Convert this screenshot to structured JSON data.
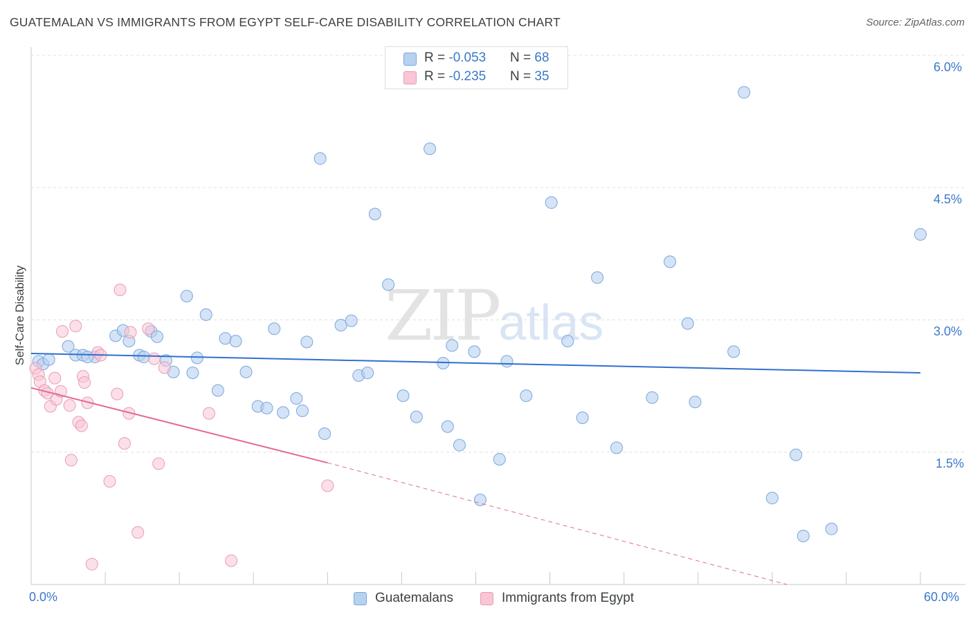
{
  "header": {
    "title": "GUATEMALAN VS IMMIGRANTS FROM EGYPT SELF-CARE DISABILITY CORRELATION CHART",
    "source": "Source: ZipAtlas.com"
  },
  "watermark": {
    "zip": "ZIP",
    "atlas": "atlas"
  },
  "stats": [
    {
      "r_label": "R = ",
      "r_value": "-0.053",
      "n_label": "N = ",
      "n_value": "68",
      "color": "#a8c8ee"
    },
    {
      "r_label": "R = ",
      "r_value": "-0.235",
      "n_label": "N = ",
      "n_value": "35",
      "color": "#f4b6c8"
    }
  ],
  "axes": {
    "x_min_label": "0.0%",
    "x_max_label": "60.0%",
    "y_tick_labels": [
      "1.5%",
      "3.0%",
      "4.5%",
      "6.0%"
    ],
    "ylabel": "Self-Care Disability"
  },
  "legend": {
    "guatemalans": "Guatemalans",
    "egypt": "Immigrants from Egypt"
  },
  "colors": {
    "blue_fill": "#b7d1f0",
    "blue_stroke": "#7aa6dd",
    "blue_line": "#2f6fce",
    "pink_fill": "#f8c6d5",
    "pink_stroke": "#ec9ab3",
    "pink_line": "#e36a96",
    "grid": "#e0e0e0",
    "axis_label": "#3a78c9"
  },
  "chart_data": {
    "type": "scatter",
    "title": "GUATEMALAN VS IMMIGRANTS FROM EGYPT SELF-CARE DISABILITY CORRELATION CHART",
    "xlabel": "",
    "ylabel": "Self-Care Disability",
    "xlim": [
      0,
      60
    ],
    "ylim": [
      0,
      6.3
    ],
    "y_ticks": [
      1.5,
      3.0,
      4.5,
      6.0
    ],
    "legend_position": "bottom",
    "series": [
      {
        "name": "Guatemalans",
        "r": -0.053,
        "n": 68,
        "trend": {
          "x": [
            0,
            60
          ],
          "y": [
            2.62,
            2.4
          ]
        },
        "points": [
          [
            0.5,
            2.53
          ],
          [
            0.8,
            2.5
          ],
          [
            1.2,
            2.55
          ],
          [
            2.5,
            2.7
          ],
          [
            3.0,
            2.6
          ],
          [
            3.5,
            2.6
          ],
          [
            4.3,
            2.58
          ],
          [
            3.8,
            2.58
          ],
          [
            5.7,
            2.82
          ],
          [
            6.2,
            2.88
          ],
          [
            6.6,
            2.76
          ],
          [
            7.3,
            2.6
          ],
          [
            7.6,
            2.58
          ],
          [
            8.1,
            2.87
          ],
          [
            8.5,
            2.81
          ],
          [
            9.1,
            2.54
          ],
          [
            9.6,
            2.41
          ],
          [
            10.5,
            3.27
          ],
          [
            10.9,
            2.4
          ],
          [
            11.2,
            2.57
          ],
          [
            11.8,
            3.06
          ],
          [
            12.6,
            2.2
          ],
          [
            13.1,
            2.79
          ],
          [
            13.8,
            2.76
          ],
          [
            14.5,
            2.41
          ],
          [
            15.3,
            2.02
          ],
          [
            15.9,
            2.0
          ],
          [
            16.4,
            2.9
          ],
          [
            17.0,
            1.95
          ],
          [
            17.9,
            2.11
          ],
          [
            18.3,
            1.97
          ],
          [
            18.6,
            2.75
          ],
          [
            19.5,
            4.83
          ],
          [
            19.8,
            1.71
          ],
          [
            20.9,
            2.94
          ],
          [
            21.6,
            2.99
          ],
          [
            22.1,
            2.37
          ],
          [
            22.7,
            2.4
          ],
          [
            23.2,
            4.2
          ],
          [
            24.1,
            3.4
          ],
          [
            25.1,
            2.14
          ],
          [
            26.0,
            1.9
          ],
          [
            26.9,
            4.94
          ],
          [
            27.8,
            2.51
          ],
          [
            28.1,
            1.79
          ],
          [
            28.4,
            2.71
          ],
          [
            28.9,
            1.58
          ],
          [
            29.9,
            2.64
          ],
          [
            30.3,
            0.96
          ],
          [
            31.6,
            1.42
          ],
          [
            32.1,
            2.53
          ],
          [
            33.4,
            2.14
          ],
          [
            35.1,
            4.33
          ],
          [
            36.2,
            2.76
          ],
          [
            37.2,
            1.89
          ],
          [
            38.2,
            3.48
          ],
          [
            39.5,
            1.55
          ],
          [
            41.9,
            2.12
          ],
          [
            43.1,
            3.66
          ],
          [
            44.3,
            2.96
          ],
          [
            44.8,
            2.07
          ],
          [
            47.4,
            2.64
          ],
          [
            48.1,
            5.58
          ],
          [
            50.0,
            0.98
          ],
          [
            51.6,
            1.47
          ],
          [
            52.1,
            0.55
          ],
          [
            54.0,
            0.63
          ],
          [
            60.0,
            3.97
          ]
        ]
      },
      {
        "name": "Immigrants from Egypt",
        "r": -0.235,
        "n": 35,
        "trend": {
          "x": [
            0,
            20
          ],
          "y": [
            2.23,
            1.38
          ]
        },
        "trend_extrapolated": {
          "x": [
            20,
            51
          ],
          "y": [
            1.38,
            0.0
          ]
        },
        "points": [
          [
            0.3,
            2.45
          ],
          [
            0.5,
            2.38
          ],
          [
            0.6,
            2.3
          ],
          [
            0.9,
            2.2
          ],
          [
            1.1,
            2.17
          ],
          [
            1.3,
            2.02
          ],
          [
            1.6,
            2.34
          ],
          [
            1.7,
            2.1
          ],
          [
            2.0,
            2.19
          ],
          [
            2.1,
            2.87
          ],
          [
            2.6,
            2.03
          ],
          [
            2.7,
            1.41
          ],
          [
            3.0,
            2.93
          ],
          [
            3.2,
            1.84
          ],
          [
            3.4,
            1.8
          ],
          [
            3.5,
            2.36
          ],
          [
            3.6,
            2.29
          ],
          [
            3.8,
            2.06
          ],
          [
            4.1,
            0.23
          ],
          [
            4.5,
            2.63
          ],
          [
            4.7,
            2.6
          ],
          [
            5.3,
            1.17
          ],
          [
            5.8,
            2.16
          ],
          [
            6.0,
            3.34
          ],
          [
            6.3,
            1.6
          ],
          [
            6.6,
            1.94
          ],
          [
            6.7,
            2.86
          ],
          [
            7.2,
            0.59
          ],
          [
            7.9,
            2.9
          ],
          [
            8.3,
            2.56
          ],
          [
            8.6,
            1.37
          ],
          [
            9.0,
            2.46
          ],
          [
            12.0,
            1.94
          ],
          [
            13.5,
            0.27
          ],
          [
            20.0,
            1.12
          ]
        ]
      }
    ]
  }
}
